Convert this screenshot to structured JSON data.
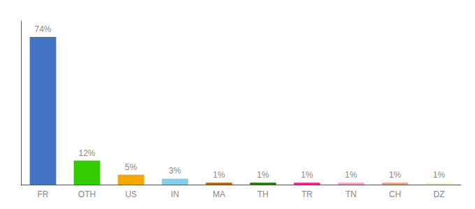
{
  "chart_data": {
    "type": "bar",
    "categories": [
      "FR",
      "OTH",
      "US",
      "IN",
      "MA",
      "TH",
      "TR",
      "TN",
      "CH",
      "DZ"
    ],
    "values": [
      74,
      12,
      5,
      3,
      1,
      1,
      1,
      1,
      1,
      1
    ],
    "value_labels": [
      "74%",
      "12%",
      "5%",
      "3%",
      "1%",
      "1%",
      "1%",
      "1%",
      "1%",
      "1%"
    ],
    "colors": [
      "#4472c4",
      "#33cc00",
      "#f5a800",
      "#87ceeb",
      "#c06000",
      "#1a7a00",
      "#ff1a8c",
      "#ff9eb5",
      "#f0a080",
      "#f5f0d0"
    ],
    "ylim": [
      0,
      82
    ],
    "grid": false,
    "data_labels": true,
    "tick_labels": "x"
  }
}
